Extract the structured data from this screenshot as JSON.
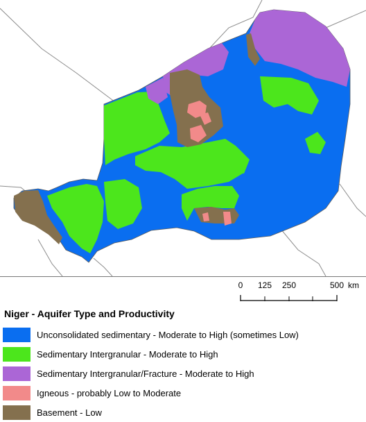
{
  "map": {
    "country": "Niger",
    "neighbor_line_color": "#8c8c8c"
  },
  "scale_bar": {
    "ticks": [
      "0",
      "125",
      "250",
      "500"
    ],
    "unit": "km"
  },
  "legend": {
    "title": "Niger - Aquifer Type and Productivity",
    "items": [
      {
        "label": "Unconsolidated sedimentary - Moderate to High (sometimes Low)",
        "color": "#0a6ef0"
      },
      {
        "label": "Sedimentary Intergranular - Moderate to High",
        "color": "#4ce61c"
      },
      {
        "label": "Sedimentary Intergranular/Fracture - Moderate to High",
        "color": "#ab66d6"
      },
      {
        "label": "Igneous - probably Low to Moderate",
        "color": "#f28a8a"
      },
      {
        "label": "Basement - Low",
        "color": "#84704e"
      }
    ]
  }
}
